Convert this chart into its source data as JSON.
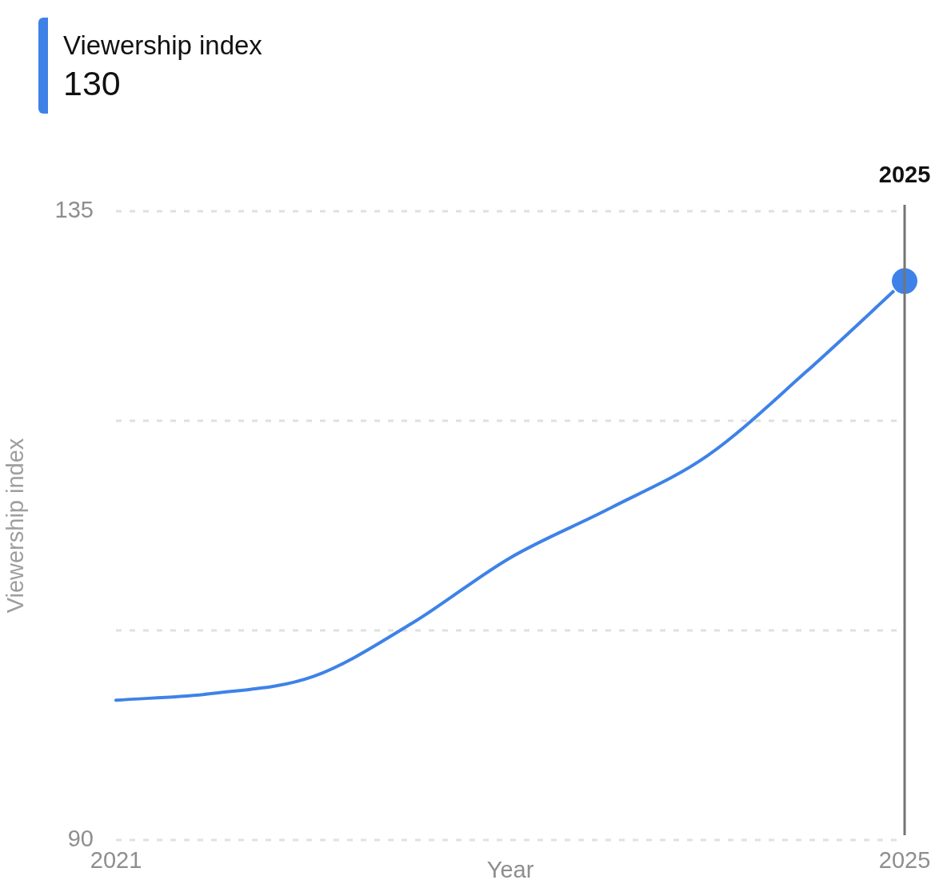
{
  "chart_data": {
    "type": "line",
    "xlabel": "Year",
    "ylabel": "Viewership index",
    "x": [
      2021,
      2021.5,
      2022,
      2022.5,
      2023,
      2023.5,
      2024,
      2024.5,
      2025
    ],
    "series": [
      {
        "name": "Viewership index",
        "color": "#3e82e8",
        "values": [
          100,
          100.5,
          101.7,
          105.5,
          110.2,
          113.7,
          117.5,
          123.5,
          130
        ]
      },
      {
        "type": "scatter",
        "color": "#3e82e8",
        "x": [
          2025
        ],
        "values": [
          130
        ],
        "marker": "circle"
      }
    ],
    "xlim": [
      2021,
      2025
    ],
    "xticks": [
      2021,
      2025
    ],
    "ylim": [
      90,
      135
    ],
    "yticks": [
      90,
      {
        "value": 105,
        "label": null
      },
      {
        "value": 120,
        "label": null
      },
      135
    ],
    "grid": "y",
    "legend": "top left",
    "annotations": [
      "130"
    ],
    "ref_lines": [
      {
        "axis": "x",
        "value": 2025,
        "label": "2025",
        "color": "#757575"
      }
    ]
  }
}
